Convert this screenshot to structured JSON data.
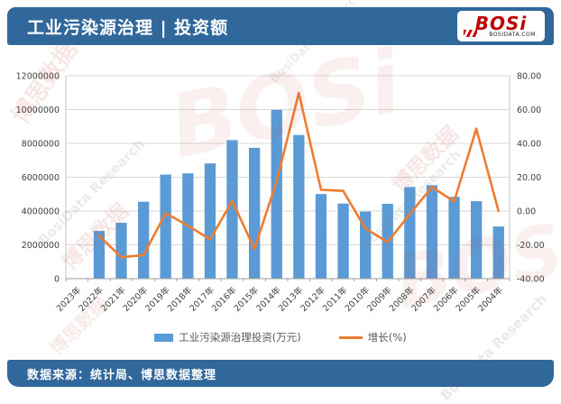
{
  "header": {
    "title": "工业污染源治理 | 投资额",
    "logo": {
      "wordmark": "BOSi",
      "domain": "BOSIDATA.COM"
    }
  },
  "footer": {
    "source": "数据来源：统计局、博思数据整理"
  },
  "watermark": {
    "cn": "博思数据",
    "en": "BosiData Research",
    "logo": "BOSi"
  },
  "colors": {
    "band_bg": "#31689B",
    "bar": "#5B9BD5",
    "line": "#ED7D31",
    "grid": "#D9D9D9",
    "axis": "#9E9E9E",
    "side_axis": "#C6C6C6",
    "label_text": "#404040"
  },
  "chart_data": {
    "type": "bar+line",
    "title": "工业污染源治理 | 投资额",
    "categories": [
      "2023年",
      "2022年",
      "2021年",
      "2020年",
      "2019年",
      "2018年",
      "2017年",
      "2016年",
      "2015年",
      "2014年",
      "2013年",
      "2012年",
      "2011年",
      "2010年",
      "2009年",
      "2008年",
      "2007年",
      "2006年",
      "2005年",
      "2004年"
    ],
    "series": [
      {
        "name": "工业污染源治理投资(万元)",
        "chart_type": "bar",
        "y_axis": "left",
        "color": "#5B9BD5",
        "values": [
          null,
          2820000,
          3305000,
          4549000,
          6152000,
          6230000,
          6815000,
          8190000,
          7737000,
          9977000,
          8497000,
          5005000,
          4444000,
          3970000,
          4425000,
          5426000,
          5524000,
          4839000,
          4582000,
          3081000
        ]
      },
      {
        "name": "增长(%)",
        "chart_type": "line",
        "y_axis": "right",
        "color": "#ED7D31",
        "values": [
          null,
          -14.7,
          -27.3,
          -26.1,
          -1.3,
          -8.6,
          -16.8,
          5.9,
          -22.4,
          17.4,
          69.8,
          12.6,
          11.9,
          -10.3,
          -18.4,
          -1.8,
          14.2,
          5.6,
          48.7,
          0.0
        ]
      }
    ],
    "left_axis": {
      "min": 0,
      "max": 12000000,
      "step": 2000000
    },
    "right_axis": {
      "min": -40,
      "max": 80,
      "step": 20,
      "decimals": 2
    },
    "grid": true,
    "legend_position": "bottom",
    "x_label_rotation": -45
  }
}
